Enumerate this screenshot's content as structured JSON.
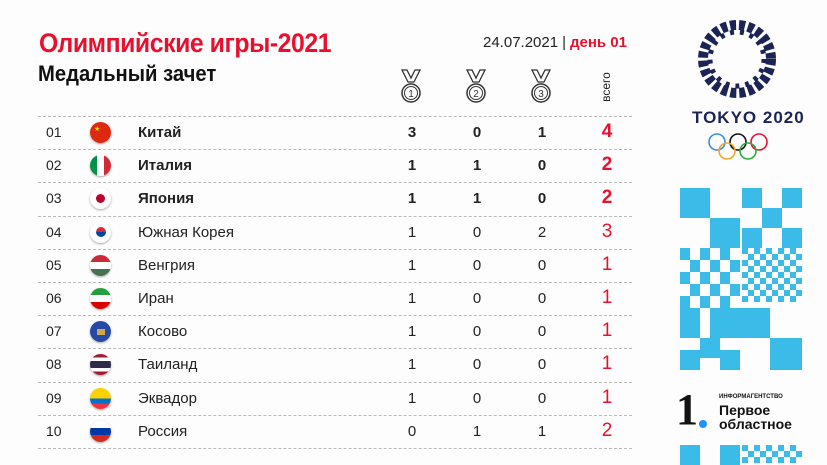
{
  "header": {
    "title": "Олимпийские игры-2021",
    "subtitle": "Медальный зачет",
    "date": "24.07.2021",
    "separator": "|",
    "day": "день 01"
  },
  "columns": {
    "gold": "1",
    "silver": "2",
    "bronze": "3",
    "total": "всего"
  },
  "rows": [
    {
      "rank": "01",
      "country": "Китай",
      "gold": "3",
      "silver": "0",
      "bronze": "1",
      "total": "4",
      "bold": true,
      "flag": "china"
    },
    {
      "rank": "02",
      "country": "Италия",
      "gold": "1",
      "silver": "1",
      "bronze": "0",
      "total": "2",
      "bold": true,
      "flag": "italy"
    },
    {
      "rank": "03",
      "country": "Япония",
      "gold": "1",
      "silver": "1",
      "bronze": "0",
      "total": "2",
      "bold": true,
      "flag": "japan"
    },
    {
      "rank": "04",
      "country": "Южная Корея",
      "gold": "1",
      "silver": "0",
      "bronze": "2",
      "total": "3",
      "bold": false,
      "flag": "korea"
    },
    {
      "rank": "05",
      "country": "Венгрия",
      "gold": "1",
      "silver": "0",
      "bronze": "0",
      "total": "1",
      "bold": false,
      "flag": "hungary"
    },
    {
      "rank": "06",
      "country": "Иран",
      "gold": "1",
      "silver": "0",
      "bronze": "0",
      "total": "1",
      "bold": false,
      "flag": "iran"
    },
    {
      "rank": "07",
      "country": "Косово",
      "gold": "1",
      "silver": "0",
      "bronze": "0",
      "total": "1",
      "bold": false,
      "flag": "kosovo"
    },
    {
      "rank": "08",
      "country": "Таиланд",
      "gold": "1",
      "silver": "0",
      "bronze": "0",
      "total": "1",
      "bold": false,
      "flag": "thailand"
    },
    {
      "rank": "09",
      "country": "Эквадор",
      "gold": "1",
      "silver": "0",
      "bronze": "0",
      "total": "1",
      "bold": false,
      "flag": "ecuador"
    },
    {
      "rank": "10",
      "country": "Россия",
      "gold": "0",
      "silver": "1",
      "bronze": "1",
      "total": "2",
      "bold": false,
      "flag": "russia"
    }
  ],
  "branding": {
    "tokyo": "TOKYO 2020",
    "agency_small": "ИНФОРМАГЕНТСТВО",
    "agency_line1": "Первое",
    "agency_line2": "областное",
    "agency_mark": "1"
  },
  "colors": {
    "accent": "#e8102e",
    "pattern": "#3bbbe8",
    "emblem": "#1b2454"
  }
}
